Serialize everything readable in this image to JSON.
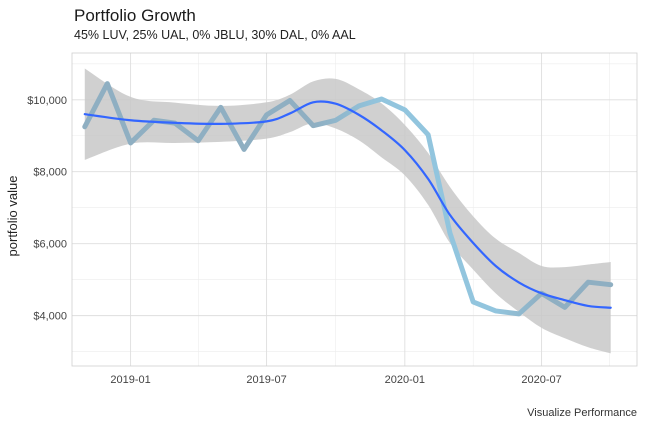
{
  "chart_data": {
    "type": "line",
    "title": "Portfolio Growth",
    "subtitle": "45% LUV, 25% UAL, 0% JBLU, 30% DAL, 0% AAL",
    "xlabel": "",
    "ylabel": "portfolio value",
    "caption": "Visualize Performance",
    "xlim": [
      "2018-10-15",
      "2020-11-05"
    ],
    "ylim": [
      2600,
      11300
    ],
    "x_ticks": [
      {
        "date": "2019-01-01",
        "label": "2019-01"
      },
      {
        "date": "2019-07-01",
        "label": "2019-07"
      },
      {
        "date": "2020-01-01",
        "label": "2020-01"
      },
      {
        "date": "2020-07-01",
        "label": "2020-07"
      }
    ],
    "y_ticks": [
      {
        "value": 4000,
        "label": "$4,000"
      },
      {
        "value": 6000,
        "label": "$6,000"
      },
      {
        "value": 8000,
        "label": "$8,000"
      },
      {
        "value": 10000,
        "label": "$10,000"
      }
    ],
    "grid": true,
    "colors": {
      "series_dark": "#8fafc2",
      "series_light": "#92c5de",
      "smooth": "#3366ff",
      "band": "#c8c8c8",
      "grid": "#dedede",
      "panel_border": "#cfcfcf"
    },
    "series": [
      {
        "x": [
          "2018-11-01",
          "2018-12-01",
          "2019-01-01",
          "2019-02-01",
          "2019-03-01",
          "2019-04-01",
          "2019-05-01",
          "2019-06-01",
          "2019-07-01",
          "2019-08-01",
          "2019-09-01",
          "2019-10-01",
          "2019-11-01",
          "2019-12-01",
          "2020-01-01",
          "2020-02-01",
          "2020-03-01",
          "2020-04-01",
          "2020-05-01",
          "2020-06-01",
          "2020-07-01",
          "2020-08-01",
          "2020-09-01",
          "2020-10-01"
        ],
        "values": [
          9250,
          10450,
          8800,
          9430,
          9350,
          8860,
          9790,
          8620,
          9580,
          9980,
          9280,
          9430,
          9830,
          10020,
          9720,
          9030,
          6300,
          4380,
          4130,
          4050,
          4620,
          4230,
          4930,
          4860
        ]
      }
    ],
    "smooth": {
      "x": [
        "2018-11-01",
        "2019-01-01",
        "2019-03-01",
        "2019-05-01",
        "2019-07-01",
        "2019-08-01",
        "2019-09-01",
        "2019-10-01",
        "2019-11-01",
        "2019-12-01",
        "2020-01-01",
        "2020-02-01",
        "2020-03-01",
        "2020-04-01",
        "2020-05-01",
        "2020-06-01",
        "2020-07-01",
        "2020-08-01",
        "2020-09-01",
        "2020-10-01"
      ],
      "fit": [
        9600,
        9430,
        9360,
        9330,
        9400,
        9620,
        9930,
        9890,
        9580,
        9150,
        8600,
        7800,
        6800,
        6020,
        5380,
        4920,
        4620,
        4430,
        4270,
        4220
      ],
      "lower": [
        8330,
        8780,
        8800,
        8830,
        8920,
        9100,
        9350,
        9200,
        8870,
        8400,
        7900,
        7080,
        6020,
        5280,
        4620,
        4100,
        3660,
        3370,
        3120,
        2950
      ],
      "upper": [
        10870,
        10080,
        9920,
        9830,
        9930,
        10140,
        10510,
        10580,
        10290,
        9900,
        9300,
        8520,
        7580,
        6760,
        6140,
        5740,
        5380,
        5350,
        5420,
        5490
      ]
    }
  }
}
